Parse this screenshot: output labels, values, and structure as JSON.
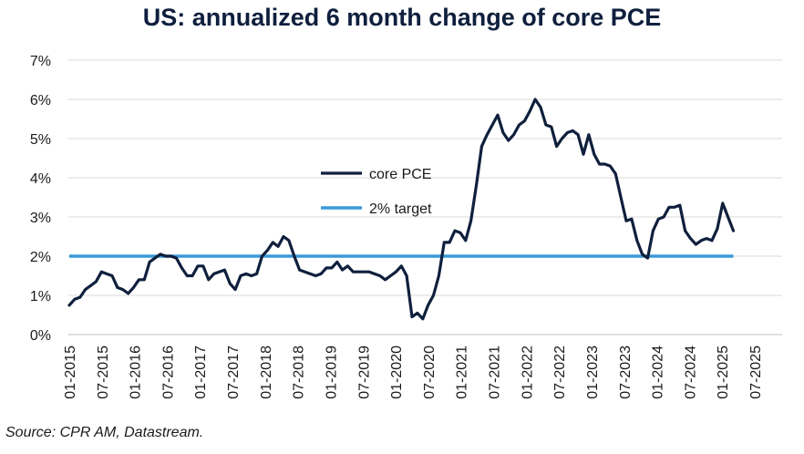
{
  "chart_data": {
    "type": "line",
    "title": "US: annualized 6 month change of core PCE",
    "source": "Source: CPR AM, Datastream.",
    "xlabel": "",
    "ylabel": "",
    "ylim": [
      0,
      7
    ],
    "y_ticks": [
      "0%",
      "1%",
      "2%",
      "3%",
      "4%",
      "5%",
      "6%",
      "7%"
    ],
    "x_ticks": [
      "01-2015",
      "07-2015",
      "01-2016",
      "07-2016",
      "01-2017",
      "07-2017",
      "01-2018",
      "07-2018",
      "01-2019",
      "07-2019",
      "01-2020",
      "07-2020",
      "01-2021",
      "07-2021",
      "01-2022",
      "07-2022",
      "01-2023",
      "07-2023",
      "01-2024",
      "07-2024",
      "01-2025",
      "07-2025"
    ],
    "grid": true,
    "legend_position": "center",
    "series": [
      {
        "name": "core PCE",
        "color": "#0f1f3d",
        "values": [
          0.75,
          0.9,
          0.95,
          1.15,
          1.25,
          1.35,
          1.6,
          1.55,
          1.5,
          1.2,
          1.15,
          1.05,
          1.2,
          1.4,
          1.4,
          1.85,
          1.95,
          2.05,
          2.0,
          2.0,
          1.95,
          1.7,
          1.5,
          1.5,
          1.75,
          1.75,
          1.4,
          1.55,
          1.6,
          1.65,
          1.3,
          1.15,
          1.5,
          1.55,
          1.5,
          1.55,
          2.0,
          2.15,
          2.35,
          2.25,
          2.5,
          2.4,
          2.0,
          1.65,
          1.6,
          1.55,
          1.5,
          1.55,
          1.7,
          1.7,
          1.85,
          1.65,
          1.75,
          1.6,
          1.6,
          1.6,
          1.6,
          1.55,
          1.5,
          1.4,
          1.5,
          1.6,
          1.75,
          1.5,
          0.45,
          0.55,
          0.4,
          0.75,
          1.0,
          1.5,
          2.35,
          2.35,
          2.65,
          2.6,
          2.4,
          2.9,
          3.8,
          4.8,
          5.1,
          5.35,
          5.6,
          5.15,
          4.95,
          5.1,
          5.35,
          5.45,
          5.7,
          6.0,
          5.8,
          5.35,
          5.3,
          4.8,
          5.0,
          5.15,
          5.2,
          5.1,
          4.6,
          5.1,
          4.6,
          4.35,
          4.35,
          4.3,
          4.1,
          3.5,
          2.9,
          2.95,
          2.4,
          2.05,
          1.95,
          2.65,
          2.95,
          3.0,
          3.25,
          3.25,
          3.3,
          2.65,
          2.45,
          2.3,
          2.4,
          2.45,
          2.4,
          2.7,
          3.35,
          3.0,
          2.65
        ]
      },
      {
        "name": "2% target",
        "color": "#3a9ad9",
        "values": [
          2,
          2
        ]
      }
    ],
    "x_range_months": [
      0,
      128
    ],
    "target_value": 2
  }
}
